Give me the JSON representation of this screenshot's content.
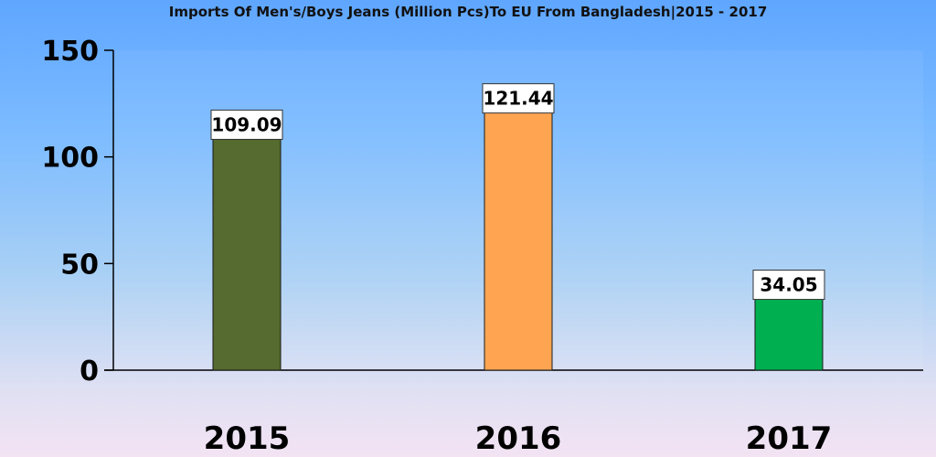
{
  "chart_data": {
    "type": "bar",
    "title": "Imports Of Men's/Boys Jeans (Million Pcs)To EU From Bangladesh|2015 - 2017",
    "categories": [
      "2015",
      "2016",
      "2017"
    ],
    "values": [
      109.09,
      121.44,
      34.05
    ],
    "value_labels": [
      "109.09",
      "121.44",
      "34.05"
    ],
    "bar_colors": [
      "#556b2f",
      "#ffa552",
      "#00b050"
    ],
    "yticks": [
      0,
      50,
      100,
      150
    ],
    "ylim": [
      0,
      150
    ],
    "xlabel": "",
    "ylabel": "",
    "grid": false,
    "legend": "none"
  }
}
